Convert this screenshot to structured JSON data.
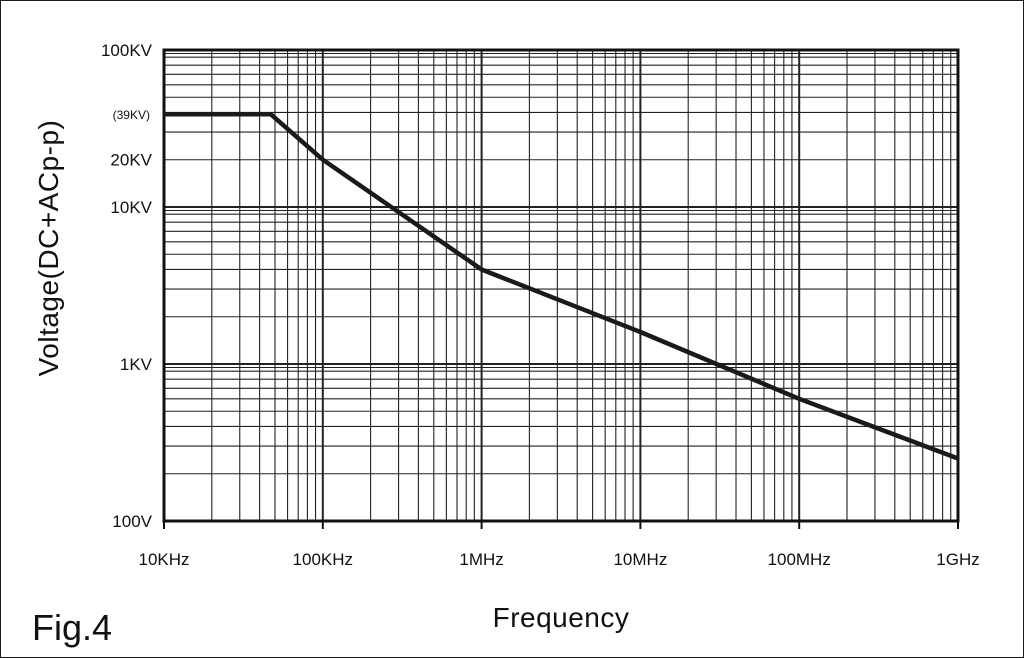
{
  "figure_label": "Fig.4",
  "chart_data": {
    "type": "line",
    "xlabel": "Frequency",
    "ylabel": "Voltage(DC+ACp-p)",
    "x_scale": "log",
    "y_scale": "log",
    "xlim": [
      10000,
      1000000000
    ],
    "ylim": [
      100,
      100000
    ],
    "grid": true,
    "x_ticks": [
      {
        "value": 10000,
        "label": "10KHz"
      },
      {
        "value": 100000,
        "label": "100KHz"
      },
      {
        "value": 1000000,
        "label": "1MHz"
      },
      {
        "value": 10000000,
        "label": "10MHz"
      },
      {
        "value": 100000000,
        "label": "100MHz"
      },
      {
        "value": 1000000000,
        "label": "1GHz"
      }
    ],
    "y_ticks": [
      {
        "value": 100,
        "label": "100V"
      },
      {
        "value": 1000,
        "label": "1KV"
      },
      {
        "value": 10000,
        "label": "10KV"
      },
      {
        "value": 20000,
        "label": "20KV"
      },
      {
        "value": 100000,
        "label": "100KV"
      }
    ],
    "y_annotation": {
      "value": 39000,
      "label": "(39KV)"
    },
    "series": [
      {
        "x": [
          10000,
          47000,
          100000,
          1000000,
          10000000,
          100000000,
          1000000000
        ],
        "y": [
          39000,
          39000,
          20000,
          4000,
          1600,
          600,
          250
        ]
      }
    ]
  }
}
